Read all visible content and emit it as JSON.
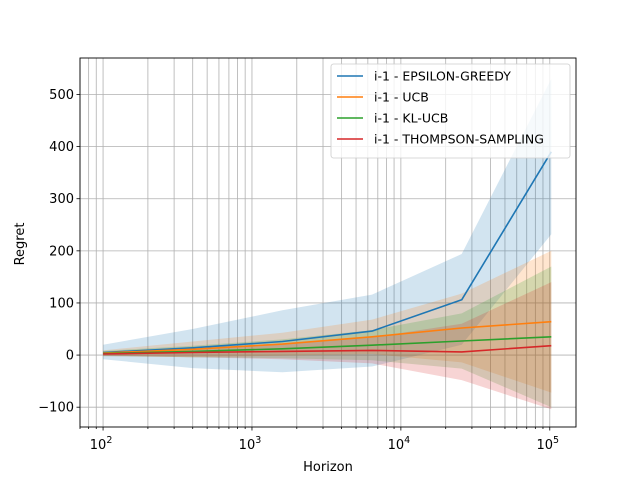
{
  "chart_data": {
    "type": "line",
    "title": "",
    "xlabel": "Horizon",
    "ylabel": "Regret",
    "xscale": "log",
    "xlim": [
      70,
      150000
    ],
    "ylim": [
      -138,
      570
    ],
    "grid": "on (major and minor on x)",
    "legend_position": "top-right",
    "x_ticks": [
      {
        "value": 100,
        "base": "10",
        "exp": "2"
      },
      {
        "value": 1000,
        "base": "10",
        "exp": "3"
      },
      {
        "value": 10000,
        "base": "10",
        "exp": "4"
      },
      {
        "value": 100000,
        "base": "10",
        "exp": "5"
      }
    ],
    "y_ticks": [
      {
        "value": -100,
        "label": "−100"
      },
      {
        "value": 0,
        "label": "0"
      },
      {
        "value": 100,
        "label": "100"
      },
      {
        "value": 200,
        "label": "200"
      },
      {
        "value": 300,
        "label": "300"
      },
      {
        "value": 400,
        "label": "400"
      },
      {
        "value": 500,
        "label": "500"
      }
    ],
    "x": [
      100,
      400,
      1600,
      6400,
      25600,
      102400
    ],
    "series": [
      {
        "name": "i-1 - EPSILON-GREEDY",
        "color": "#1f77b4",
        "values": [
          5,
          14,
          26,
          46,
          106,
          390
        ],
        "band_upper": [
          20,
          50,
          86,
          116,
          194,
          530
        ],
        "band_lower": [
          -8,
          -25,
          -33,
          -22,
          20,
          232
        ]
      },
      {
        "name": "i-1 - UCB",
        "color": "#ff7f0e",
        "values": [
          4,
          11,
          21,
          35,
          52,
          64
        ],
        "band_upper": [
          9,
          26,
          43,
          68,
          118,
          200
        ],
        "band_lower": [
          -1,
          -4,
          -1,
          2,
          -14,
          -72
        ]
      },
      {
        "name": "i-1 - KL-UCB",
        "color": "#2ca02c",
        "values": [
          3,
          7,
          12,
          19,
          27,
          35
        ],
        "band_upper": [
          8,
          18,
          30,
          48,
          80,
          170
        ],
        "band_lower": [
          -2,
          -4,
          -6,
          -10,
          -26,
          -100
        ]
      },
      {
        "name": "i-1 - THOMPSON-SAMPLING",
        "color": "#d62728",
        "values": [
          2,
          5,
          7,
          9,
          6,
          18
        ],
        "band_upper": [
          6,
          14,
          22,
          34,
          60,
          140
        ],
        "band_lower": [
          -2,
          -4,
          -8,
          -16,
          -48,
          -104
        ]
      }
    ]
  }
}
